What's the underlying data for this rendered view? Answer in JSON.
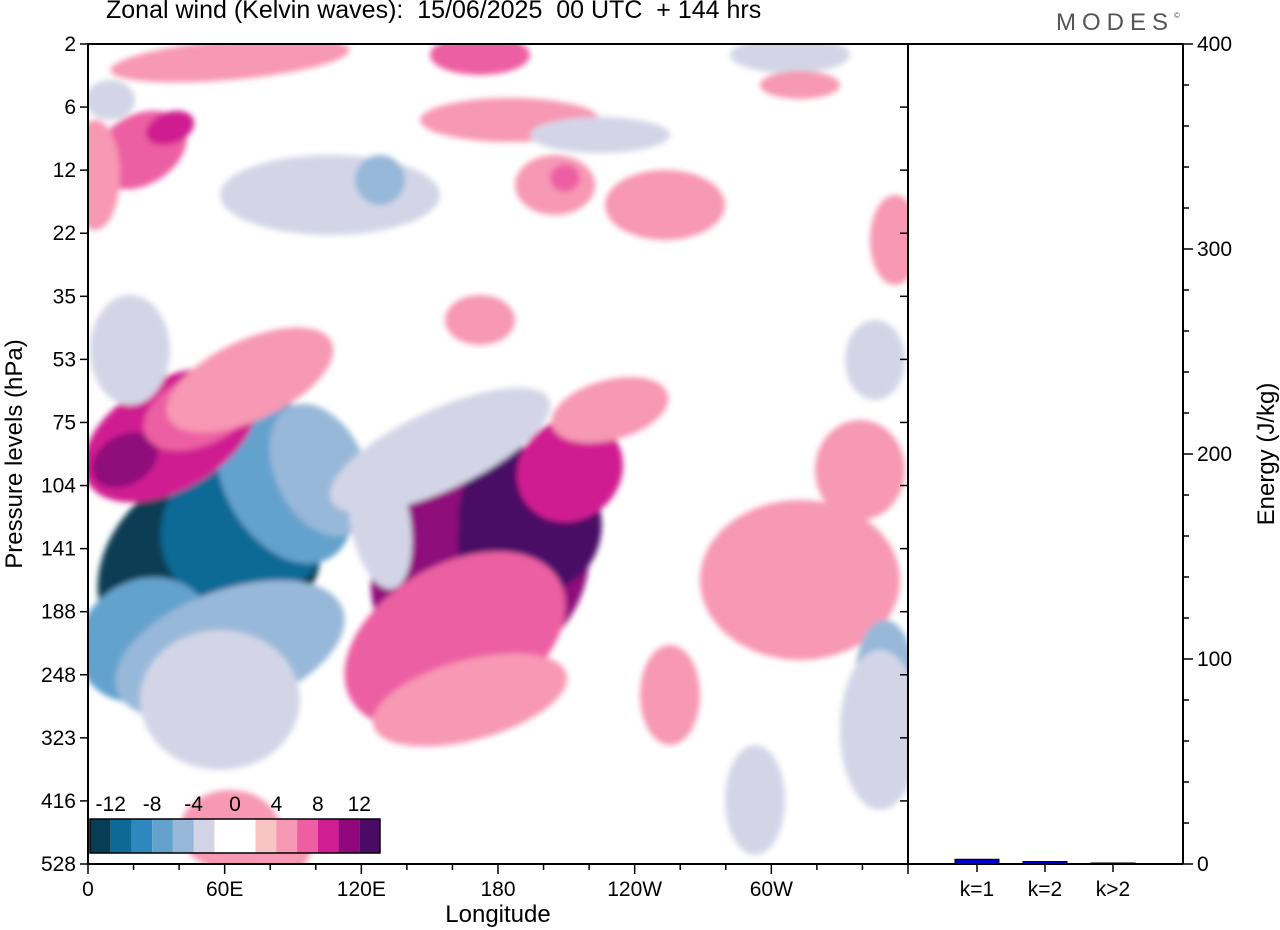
{
  "header": {
    "title": "Zonal wind (Kelvin waves):  15/06/2025  00 UTC  + 144 hrs",
    "brand": "MODES",
    "brand_mark": "©"
  },
  "chart_data": [
    {
      "type": "heatmap",
      "title": "Zonal wind (Kelvin waves):  15/06/2025  00 UTC  + 144 hrs",
      "xlabel": "Longitude",
      "ylabel": "Pressure levels (hPa)",
      "x_tick_labels": [
        "0",
        "60E",
        "120E",
        "180",
        "120W",
        "60W"
      ],
      "x_range_degrees_east": [
        0,
        360
      ],
      "y_tick_labels": [
        "2",
        "6",
        "12",
        "22",
        "35",
        "53",
        "75",
        "104",
        "141",
        "188",
        "248",
        "323",
        "416",
        "528"
      ],
      "y_axis": "pressure levels, decreasing upward",
      "colorbar": {
        "tick_labels": [
          "-12",
          "-8",
          "-4",
          "0",
          "4",
          "8",
          "12"
        ],
        "levels": [
          -14,
          -12,
          -10,
          -8,
          -6,
          -4,
          -2,
          0,
          2,
          4,
          6,
          8,
          10,
          12,
          14
        ],
        "colors": [
          "#083e55",
          "#0f6996",
          "#2f88bd",
          "#63a2cd",
          "#98b8d9",
          "#d3d5e7",
          "#ffffff",
          "#ffffff",
          "#f9c4c4",
          "#f798b4",
          "#ed5ea3",
          "#d01d91",
          "#90087c",
          "#4a0a66"
        ],
        "placement": "bottom-left"
      },
      "features": [
        {
          "lon": 50,
          "level": "141",
          "value": -14
        },
        {
          "lon": 18,
          "level": "104",
          "value": 8
        },
        {
          "lon": 175,
          "level": "141",
          "value": 12
        },
        {
          "lon": 280,
          "level": "141",
          "value": 6
        },
        {
          "lon": 345,
          "level": "248",
          "value": -6
        }
      ]
    },
    {
      "type": "bar",
      "categories": [
        "k=1",
        "k=2",
        "k>2"
      ],
      "values": [
        2.3,
        1.2,
        0.5
      ],
      "ylabel": "Energy (J/kg)",
      "ylim": [
        0,
        400
      ],
      "y_tick_labels": [
        "0",
        "100",
        "200",
        "300",
        "400"
      ],
      "y_axis_side": "right",
      "bar_color": "#0000cc"
    }
  ]
}
